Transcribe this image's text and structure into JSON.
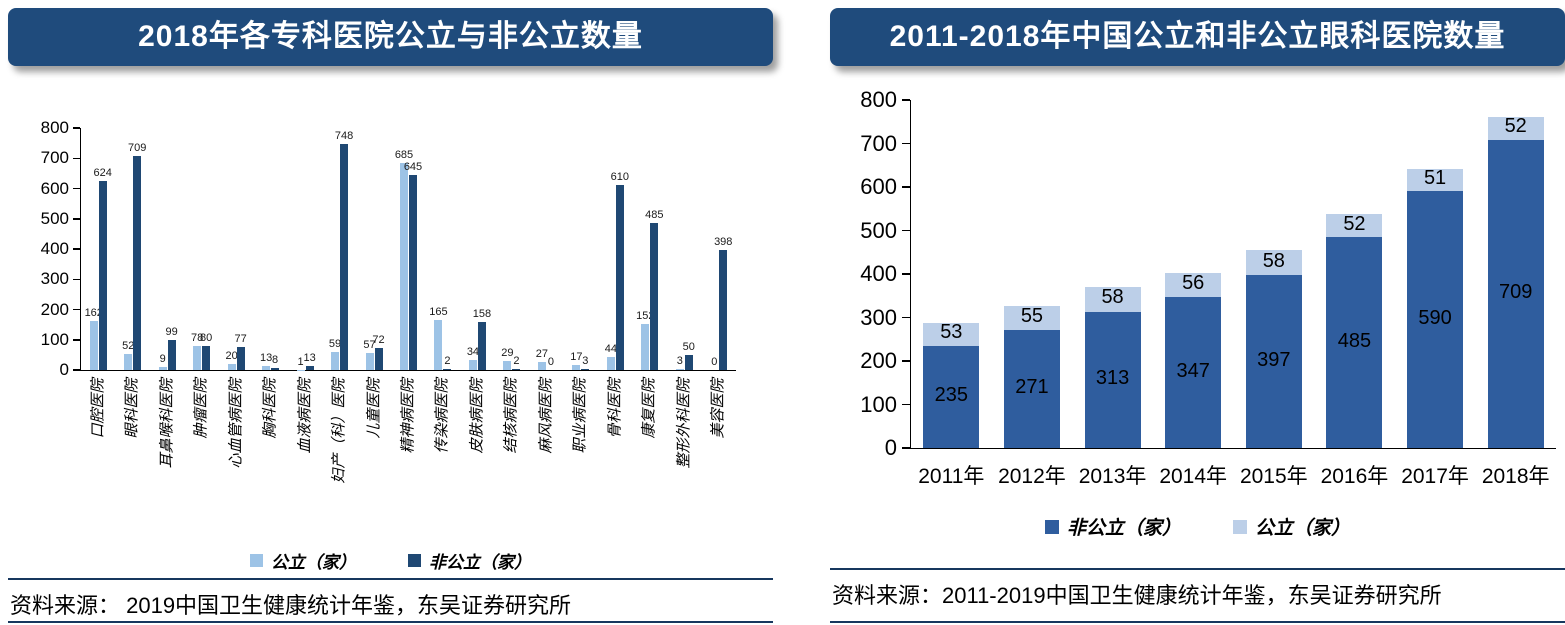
{
  "page": {
    "background": "#ffffff"
  },
  "theme": {
    "title_bg": "#1F4B7C",
    "title_text": "#FFFFFF",
    "divider": "#17375E",
    "axis": "#000000"
  },
  "panels": [
    {
      "source": "资料来源： 2019中国卫生健康统计年鉴，东吴证券研究所"
    },
    {
      "source": "资料来源：2011-2019中国卫生健康统计年鉴，东吴证券研究所"
    }
  ],
  "chart_data": [
    {
      "type": "bar",
      "stacked": false,
      "title": "2018年各专科医院公立与非公立数量",
      "categories": [
        "口腔医院",
        "眼科医院",
        "耳鼻喉科医院",
        "肿瘤医院",
        "心血管病医院",
        "胸科医院",
        "血液病医院",
        "妇产（科）医院",
        "儿童医院",
        "精神病医院",
        "传染病医院",
        "皮肤病医院",
        "结核病医院",
        "麻风病医院",
        "职业病医院",
        "骨科医院",
        "康复医院",
        "整形外科医院",
        "美容医院"
      ],
      "series": [
        {
          "name": "公立（家）",
          "color": "#9DC3E6",
          "values": [
            162,
            52,
            9,
            78,
            20,
            13,
            1,
            59,
            57,
            685,
            165,
            34,
            29,
            27,
            17,
            44,
            152,
            3,
            0
          ]
        },
        {
          "name": "非公立（家）",
          "color": "#1F4873",
          "values": [
            624,
            709,
            99,
            80,
            77,
            8,
            13,
            748,
            72,
            645,
            2,
            158,
            2,
            0,
            3,
            610,
            485,
            50,
            398
          ]
        }
      ],
      "xlabel": "",
      "ylabel": "",
      "ylim": [
        0,
        800
      ],
      "ytick_step": 100,
      "grid": false,
      "data_labels": true,
      "legend_position": "bottom"
    },
    {
      "type": "bar",
      "stacked": true,
      "title": "2011-2018年中国公立和非公立眼科医院数量",
      "categories": [
        "2011年",
        "2012年",
        "2013年",
        "2014年",
        "2015年",
        "2016年",
        "2017年",
        "2018年"
      ],
      "series": [
        {
          "name": "非公立（家）",
          "color": "#2F5D9E",
          "values": [
            235,
            271,
            313,
            347,
            397,
            485,
            590,
            709
          ]
        },
        {
          "name": "公立（家）",
          "color": "#BCCFE8",
          "values": [
            53,
            55,
            58,
            56,
            58,
            52,
            51,
            52
          ]
        }
      ],
      "xlabel": "",
      "ylabel": "",
      "ylim": [
        0,
        800
      ],
      "ytick_step": 100,
      "grid": false,
      "data_labels": true,
      "legend_position": "bottom"
    }
  ]
}
